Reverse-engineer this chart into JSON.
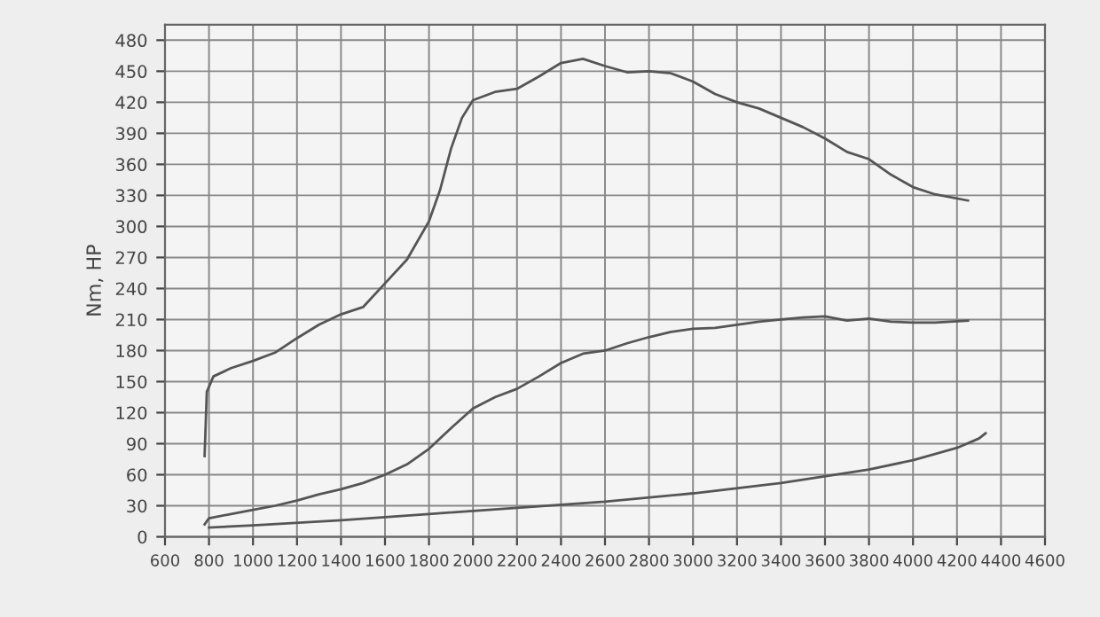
{
  "chart_data": {
    "type": "line",
    "ylabel": "Nm, HP",
    "xlim": [
      600,
      4600
    ],
    "xticks": [
      600,
      800,
      1000,
      1200,
      1400,
      1600,
      1800,
      2000,
      2200,
      2400,
      2600,
      2800,
      3000,
      3200,
      3400,
      3600,
      3800,
      4000,
      4200,
      4400,
      4600
    ],
    "ylim": [
      0,
      495
    ],
    "yticks": [
      0,
      30,
      60,
      90,
      120,
      150,
      180,
      210,
      240,
      270,
      300,
      330,
      360,
      390,
      420,
      450,
      480
    ],
    "grid": true,
    "marker": "none",
    "line_style": "solid",
    "series": [
      {
        "color": "#555555",
        "x": [
          780,
          790,
          820,
          900,
          1000,
          1100,
          1200,
          1300,
          1400,
          1500,
          1600,
          1700,
          1800,
          1850,
          1900,
          1950,
          2000,
          2100,
          2200,
          2300,
          2400,
          2500,
          2600,
          2700,
          2800,
          2900,
          3000,
          3100,
          3200,
          3300,
          3400,
          3500,
          3600,
          3700,
          3800,
          3900,
          4000,
          4100,
          4250
        ],
        "values": [
          78,
          140,
          155,
          163,
          170,
          178,
          192,
          205,
          215,
          222,
          245,
          268,
          305,
          335,
          375,
          405,
          422,
          430,
          433,
          445,
          458,
          462,
          455,
          449,
          450,
          448,
          440,
          428,
          420,
          414,
          405,
          396,
          385,
          372,
          365,
          350,
          338,
          331,
          325
        ]
      },
      {
        "color": "#555555",
        "x": [
          780,
          800,
          900,
          1000,
          1100,
          1200,
          1300,
          1400,
          1500,
          1600,
          1700,
          1800,
          1900,
          2000,
          2100,
          2200,
          2300,
          2400,
          2500,
          2600,
          2700,
          2800,
          2900,
          3000,
          3100,
          3200,
          3300,
          3400,
          3500,
          3600,
          3700,
          3800,
          3900,
          4000,
          4100,
          4250
        ],
        "values": [
          12,
          18,
          22,
          26,
          30,
          35,
          41,
          46,
          52,
          60,
          70,
          85,
          105,
          124,
          135,
          143,
          155,
          168,
          177,
          180,
          187,
          193,
          198,
          201,
          202,
          205,
          208,
          210,
          212,
          213,
          209,
          211,
          208,
          207,
          207,
          209
        ]
      },
      {
        "color": "#555555",
        "x": [
          800,
          1000,
          1400,
          1800,
          2200,
          2600,
          3000,
          3400,
          3800,
          4000,
          4200,
          4300,
          4330
        ],
        "values": [
          9,
          11,
          16,
          22,
          28,
          34,
          42,
          52,
          65,
          74,
          86,
          95,
          100
        ]
      }
    ]
  }
}
